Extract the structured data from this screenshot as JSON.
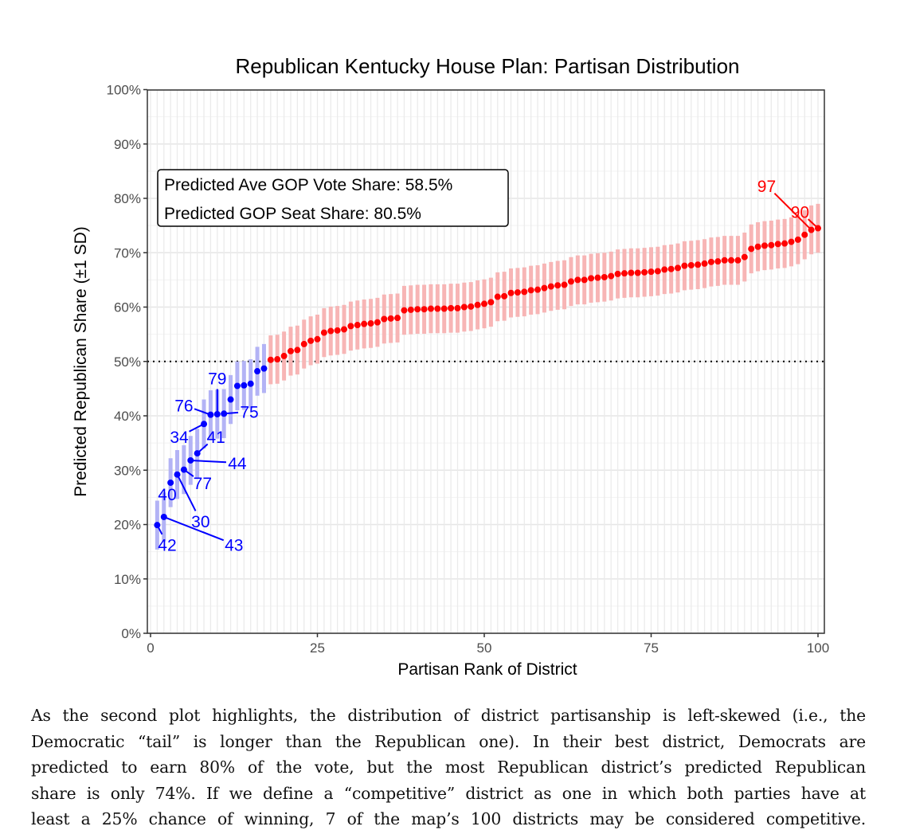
{
  "chart_data": {
    "type": "scatter",
    "title": "Republican Kentucky House Plan: Partisan Distribution",
    "xlabel": "Partisan Rank of District",
    "ylabel": "Predicted Republican Share (±1 SD)",
    "xlim": [
      0,
      100
    ],
    "ylim": [
      0,
      100
    ],
    "xticks": [
      0,
      25,
      50,
      75,
      100
    ],
    "xtick_labels": [
      "0",
      "25",
      "50",
      "75",
      "100"
    ],
    "yticks": [
      0,
      10,
      20,
      30,
      40,
      50,
      60,
      70,
      80,
      90,
      100
    ],
    "ytick_labels": [
      "0%",
      "10%",
      "20%",
      "30%",
      "40%",
      "50%",
      "60%",
      "70%",
      "80%",
      "90%",
      "100%"
    ],
    "grid": true,
    "reference_line": {
      "y": 50,
      "style": "dotted"
    },
    "sd": 4.5,
    "colors": {
      "dem": "#0000ff",
      "dem_bar": "#b3b3f5",
      "rep": "#ff0000",
      "rep_bar": "#f7b5b5"
    },
    "x": [
      1,
      2,
      3,
      4,
      5,
      6,
      7,
      8,
      9,
      10,
      11,
      12,
      13,
      14,
      15,
      16,
      17,
      18,
      19,
      20,
      21,
      22,
      23,
      24,
      25,
      26,
      27,
      28,
      29,
      30,
      31,
      32,
      33,
      34,
      35,
      36,
      37,
      38,
      39,
      40,
      41,
      42,
      43,
      44,
      45,
      46,
      47,
      48,
      49,
      50,
      51,
      52,
      53,
      54,
      55,
      56,
      57,
      58,
      59,
      60,
      61,
      62,
      63,
      64,
      65,
      66,
      67,
      68,
      69,
      70,
      71,
      72,
      73,
      74,
      75,
      76,
      77,
      78,
      79,
      80,
      81,
      82,
      83,
      84,
      85,
      86,
      87,
      88,
      89,
      90,
      91,
      92,
      93,
      94,
      95,
      96,
      97,
      98,
      99,
      100
    ],
    "values": [
      19.9,
      21.4,
      27.7,
      29.2,
      30.1,
      31.8,
      33.1,
      38.5,
      40.2,
      40.3,
      40.4,
      43.0,
      45.5,
      45.6,
      45.9,
      48.2,
      48.7,
      50.3,
      50.4,
      51.0,
      51.9,
      52.1,
      53.2,
      53.8,
      54.1,
      55.3,
      55.6,
      55.7,
      55.9,
      56.5,
      56.7,
      56.9,
      57.0,
      57.2,
      57.8,
      57.9,
      58.0,
      59.4,
      59.5,
      59.6,
      59.6,
      59.7,
      59.7,
      59.7,
      59.8,
      59.8,
      60.0,
      60.1,
      60.4,
      60.6,
      60.9,
      61.9,
      62.0,
      62.6,
      62.7,
      62.8,
      63.1,
      63.2,
      63.5,
      63.8,
      64.0,
      64.1,
      64.7,
      65.0,
      65.0,
      65.3,
      65.4,
      65.5,
      65.7,
      66.1,
      66.2,
      66.3,
      66.3,
      66.4,
      66.5,
      66.6,
      66.9,
      67.0,
      67.2,
      67.6,
      67.7,
      67.8,
      68.0,
      68.3,
      68.4,
      68.6,
      68.6,
      68.6,
      69.2,
      70.7,
      71.1,
      71.3,
      71.4,
      71.6,
      71.7,
      72.0,
      72.4,
      73.3,
      74.2,
      74.5
    ],
    "annotations": [
      {
        "text": "42",
        "rank": 1,
        "party": "dem",
        "label_x": 2.5,
        "label_y": 15.2
      },
      {
        "text": "43",
        "rank": 2,
        "party": "dem",
        "label_x": 12.5,
        "label_y": 15.2
      },
      {
        "text": "40",
        "rank": 3,
        "party": "dem",
        "label_x": 2.5,
        "label_y": 24.5
      },
      {
        "text": "30",
        "rank": 4,
        "party": "dem",
        "label_x": 7.5,
        "label_y": 19.5
      },
      {
        "text": "77",
        "rank": 5,
        "party": "dem",
        "label_x": 7.8,
        "label_y": 26.5
      },
      {
        "text": "44",
        "rank": 6,
        "party": "dem",
        "label_x": 13.0,
        "label_y": 30.2
      },
      {
        "text": "41",
        "rank": 7,
        "party": "dem",
        "label_x": 9.8,
        "label_y": 35.0
      },
      {
        "text": "34",
        "rank": 8,
        "party": "dem",
        "label_x": 4.3,
        "label_y": 35.0
      },
      {
        "text": "76",
        "rank": 9,
        "party": "dem",
        "label_x": 5.0,
        "label_y": 40.8
      },
      {
        "text": "79",
        "rank": 10,
        "party": "dem",
        "label_x": 10.0,
        "label_y": 45.8
      },
      {
        "text": "75",
        "rank": 11,
        "party": "dem",
        "label_x": 14.8,
        "label_y": 39.6
      },
      {
        "text": "97",
        "rank": 99,
        "party": "rep",
        "label_x": 92.3,
        "label_y": 81.2
      },
      {
        "text": "90",
        "rank": 100,
        "party": "rep",
        "label_x": 97.3,
        "label_y": 76.4
      }
    ],
    "text_box": {
      "lines": [
        "Predicted Ave GOP Vote Share: 58.5%",
        "Predicted GOP Seat Share: 80.5%"
      ],
      "placement": "top-left"
    }
  },
  "paragraph": {
    "lines": [
      "As the second plot highlights, the distribution of district partisanship is left-skewed (i.e., the",
      "Democratic “tail” is longer than the Republican one). In their best district, Democrats are",
      "predicted to earn 80% of the vote, but the most Republican district’s predicted Republican",
      "share is only 74%. If we define a “competitive” district as one in which both parties have at",
      "least a 25% chance of winning, 7 of the map’s 100 districts may be considered competitive."
    ]
  }
}
